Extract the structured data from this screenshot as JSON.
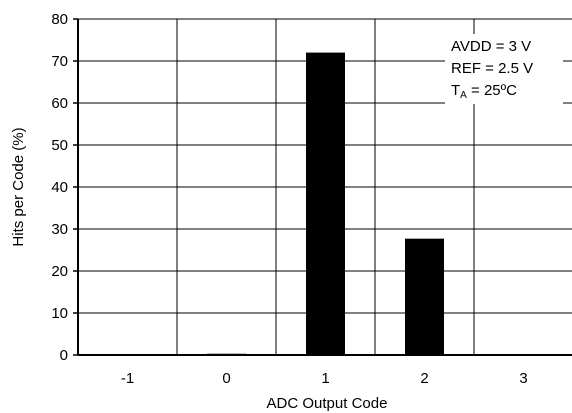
{
  "chart_data": {
    "type": "bar",
    "categories": [
      "-1",
      "0",
      "1",
      "2",
      "3"
    ],
    "values": [
      0,
      0.3,
      72,
      27.7,
      0
    ],
    "xlabel": "ADC Output Code",
    "ylabel": "Hits per Code (%)",
    "ylim": [
      0,
      80
    ],
    "yticks": [
      "0",
      "10",
      "20",
      "30",
      "40",
      "50",
      "60",
      "70",
      "80"
    ],
    "grid": true,
    "legend": "none",
    "bar_color": "#000000",
    "annotations": {
      "line1": "AVDD = 3 V",
      "line2": "REF = 2.5 V",
      "line3_main": "T",
      "line3_sub": "A",
      "line3_rest": " = 25ºC"
    }
  }
}
